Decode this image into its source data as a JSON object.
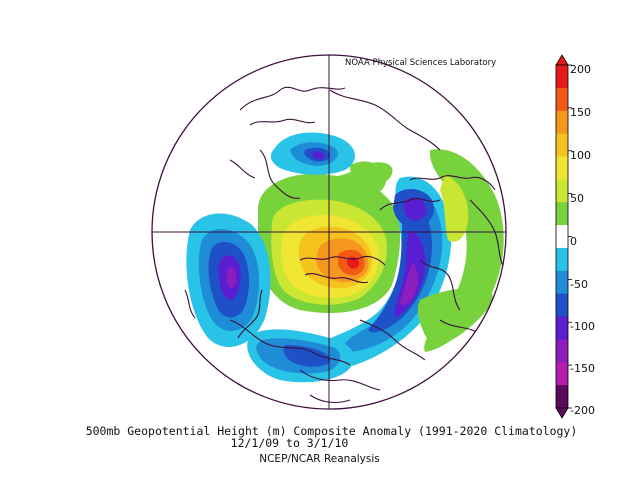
{
  "credit": "NOAA Physical Sciences Laboratory",
  "caption": {
    "line1": "500mb Geopotential Height (m) Composite Anomaly (1991-2020 Climatology)",
    "line2": "12/1/09   to 3/1/10",
    "line3": "NCEP/NCAR Reanalysis"
  },
  "colorbar": {
    "labels": [
      "200",
      "150",
      "100",
      "50",
      "0",
      "-50",
      "-100",
      "-150",
      "-200"
    ],
    "bands": [
      "#e61a1a",
      "#f05a14",
      "#f5961e",
      "#f5c31e",
      "#f0e632",
      "#c8e632",
      "#78d23c",
      "#ffffff",
      "#28c3e6",
      "#1e8cd7",
      "#1e50c8",
      "#5a1ed2",
      "#8c1ebe",
      "#b41eaa",
      "#5a0a5a"
    ]
  },
  "colors": {
    "globe_outline": "#3c0f3c",
    "coastline": "#3c0f3c"
  }
}
